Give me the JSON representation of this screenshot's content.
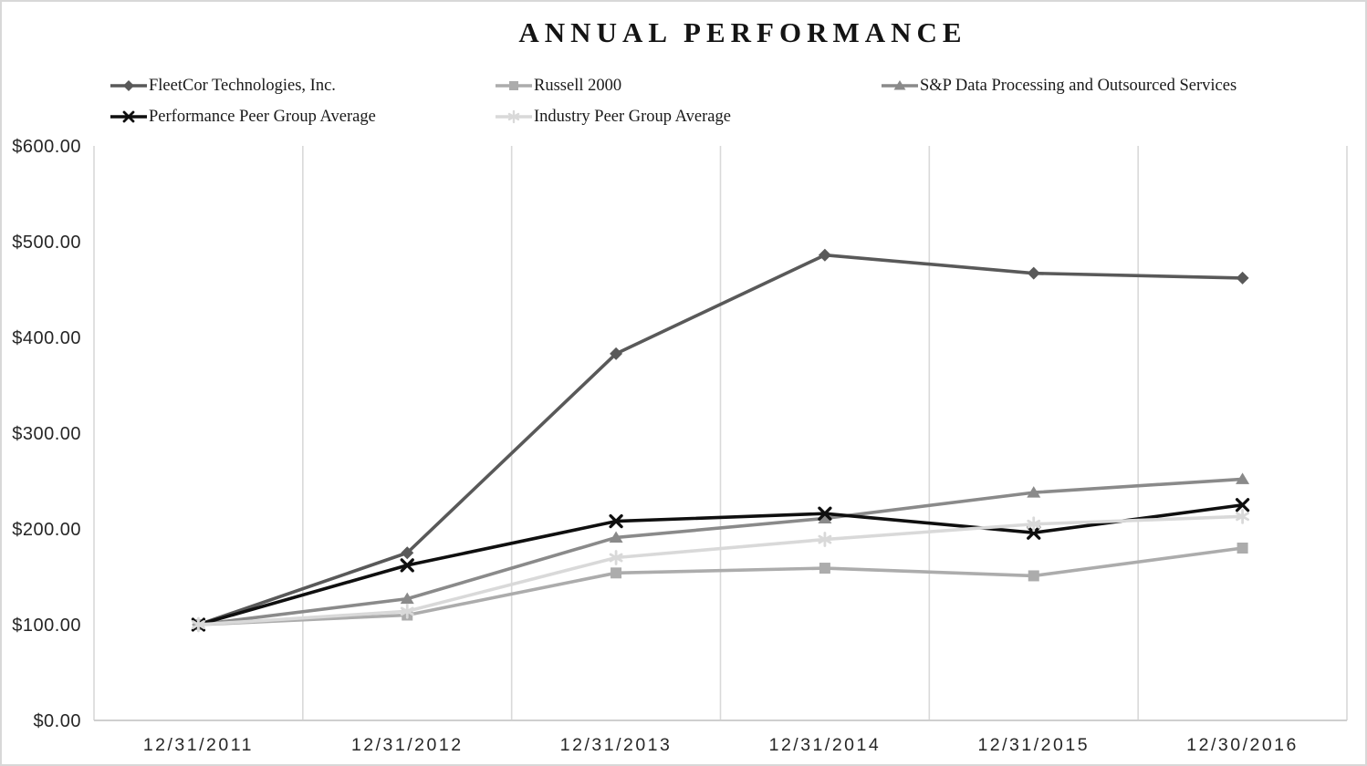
{
  "chart_data": {
    "type": "line",
    "title": "ANNUAL PERFORMANCE",
    "categories": [
      "12/31/2011",
      "12/31/2012",
      "12/31/2013",
      "12/31/2014",
      "12/31/2015",
      "12/30/2016"
    ],
    "series": [
      {
        "name": "FleetCor Technologies, Inc.",
        "marker": "diamond",
        "color": "#595959",
        "values": [
          100.0,
          175.0,
          383.0,
          486.0,
          467.0,
          462.0
        ]
      },
      {
        "name": "Russell 2000",
        "marker": "square",
        "color": "#ACACAC",
        "values": [
          100.0,
          110.0,
          154.0,
          159.0,
          151.0,
          180.0
        ]
      },
      {
        "name": "S&P Data Processing and Outsourced Services",
        "marker": "triangle",
        "color": "#8A8A8A",
        "values": [
          100.0,
          127.0,
          191.0,
          211.0,
          238.0,
          252.0
        ]
      },
      {
        "name": "Performance Peer Group Average",
        "marker": "x",
        "color": "#0F0F0F",
        "values": [
          100.0,
          162.0,
          208.0,
          216.0,
          196.0,
          225.0
        ]
      },
      {
        "name": "Industry Peer Group Average",
        "marker": "asterisk",
        "color": "#D9D9D9",
        "values": [
          100.0,
          114.0,
          170.0,
          189.0,
          205.0,
          213.0
        ]
      }
    ],
    "y_axis": {
      "min": 0,
      "max": 600,
      "step": 100,
      "tick_labels": [
        "$0.00",
        "$100.00",
        "$200.00",
        "$300.00",
        "$400.00",
        "$500.00",
        "$600.00"
      ],
      "format": "currency"
    },
    "x_axis": {
      "tick_labels": [
        "12/31/2011",
        "12/31/2012",
        "12/31/2013",
        "12/31/2014",
        "12/31/2015",
        "12/30/2016"
      ]
    },
    "legend_position": "top, two rows, three columns",
    "grid": "vertical gridlines at category boundaries, no horizontal gridlines",
    "colors": {
      "gridline": "#D9D9D9",
      "axis_line": "#CFCFCF",
      "tick_text": "#262626",
      "title_text": "#141414",
      "frame_border": "#D8D8D8"
    }
  }
}
